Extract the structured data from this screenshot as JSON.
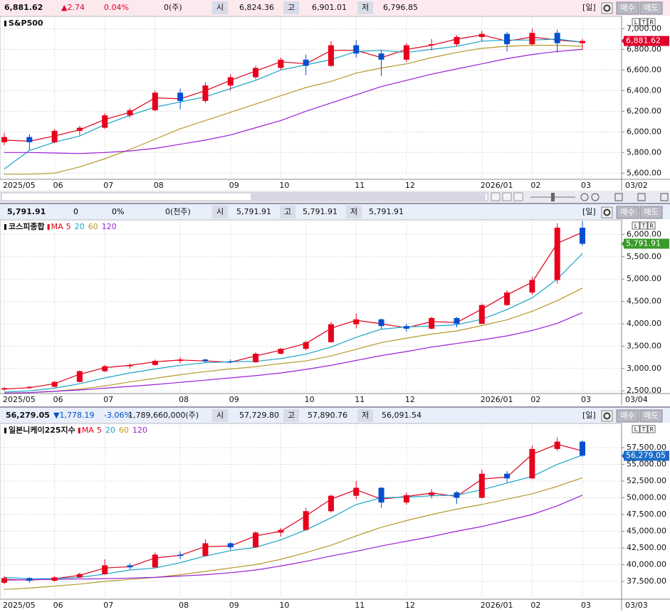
{
  "chart_data": [
    {
      "type": "candlestick",
      "title": "S&P500",
      "header": [
        "6,881.62",
        "▲2.74",
        "0.04%",
        "0(주)",
        "시",
        "6,824.36",
        "고",
        "6,901.01",
        "저",
        "6,796.85"
      ],
      "change_color": "#e0002a",
      "header_bg": "#fbe9ee",
      "buttons": [
        "[일]",
        "매수",
        "매도"
      ],
      "scale_buttons": [
        "L",
        "T",
        "R"
      ],
      "categories": [
        "2025/05",
        null,
        "06",
        null,
        "07",
        null,
        "08",
        null,
        null,
        "09",
        null,
        "10",
        null,
        null,
        "11",
        null,
        "12",
        null,
        null,
        "2026/01",
        null,
        "02",
        null,
        "03"
      ],
      "date": "03/02",
      "open": [
        5900,
        5950,
        5900,
        6010,
        6040,
        6160,
        6210,
        6380,
        6300,
        6450,
        6530,
        6620,
        6700,
        6640,
        6840,
        6760,
        6700,
        6840,
        6850,
        6920,
        6950,
        6850,
        6960,
        6860
      ],
      "high": [
        5990,
        5980,
        6030,
        6060,
        6180,
        6230,
        6400,
        6420,
        6480,
        6560,
        6640,
        6720,
        6750,
        6880,
        6890,
        6790,
        6860,
        6900,
        6940,
        6980,
        6970,
        7000,
        6990,
        6901
      ],
      "low": [
        5870,
        5820,
        5890,
        5970,
        6030,
        6140,
        6200,
        6220,
        6280,
        6400,
        6510,
        6600,
        6550,
        6630,
        6720,
        6540,
        6680,
        6790,
        6830,
        6880,
        6780,
        6840,
        6770,
        6797
      ],
      "close": [
        5950,
        5900,
        6010,
        6040,
        6160,
        6210,
        6380,
        6300,
        6450,
        6530,
        6620,
        6700,
        6640,
        6840,
        6760,
        6700,
        6840,
        6850,
        6920,
        6950,
        6850,
        6960,
        6860,
        6882
      ],
      "up_color": "#e8001c",
      "down_color": "#0050d0",
      "series": [
        {
          "color": "#e0001b",
          "values": [
            5920,
            5910,
            5960,
            6020,
            6120,
            6190,
            6330,
            6320,
            6400,
            6500,
            6590,
            6680,
            6660,
            6790,
            6790,
            6720,
            6800,
            6840,
            6900,
            6940,
            6880,
            6920,
            6890,
            6870
          ]
        },
        {
          "color": "#1aa3c9",
          "values": [
            5640,
            5820,
            5900,
            5960,
            6070,
            6160,
            6240,
            6290,
            6340,
            6420,
            6500,
            6600,
            6650,
            6700,
            6780,
            6790,
            6770,
            6800,
            6830,
            6880,
            6890,
            6890,
            6900,
            6870
          ]
        },
        {
          "color": "#b59a2a",
          "values": [
            5590,
            5590,
            5600,
            5660,
            5740,
            5830,
            5930,
            6030,
            6110,
            6190,
            6270,
            6350,
            6430,
            6490,
            6570,
            6620,
            6660,
            6720,
            6770,
            6810,
            6830,
            6840,
            6840,
            6830
          ]
        },
        {
          "color": "#9b1fd6",
          "values": [
            5800,
            5800,
            5795,
            5790,
            5800,
            5815,
            5840,
            5880,
            5920,
            5970,
            6040,
            6110,
            6200,
            6280,
            6360,
            6440,
            6500,
            6560,
            6610,
            6660,
            6710,
            6750,
            6780,
            6800
          ]
        }
      ],
      "ylim": [
        5540,
        7120
      ],
      "yticks": [
        {
          "value": 5600,
          "label": "5,600.00"
        },
        {
          "value": 5800,
          "label": "5,800.00"
        },
        {
          "value": 6000,
          "label": "6,000.00"
        },
        {
          "value": 6200,
          "label": "6,200.00"
        },
        {
          "value": 6400,
          "label": "6,400.00"
        },
        {
          "value": 6600,
          "label": "6,600.00"
        },
        {
          "value": 6800,
          "label": "6,800.00"
        },
        {
          "value": 7000,
          "label": "7,000.00"
        }
      ],
      "last_price": {
        "value": 6881.62,
        "label": "6,881.62"
      },
      "last_price_color": "#e0002a",
      "grid": true
    },
    {
      "type": "candlestick",
      "title": "코스피종합",
      "ma_label": "MA",
      "header": [
        "5,791.91",
        "0",
        "0%",
        "0(천주)",
        "시",
        "5,791.91",
        "고",
        "5,791.91",
        "저",
        "5,791.91"
      ],
      "change_color": "#000000",
      "header_bg": "#e8eefa",
      "buttons": [
        "[일]",
        "매수",
        "매도"
      ],
      "scale_buttons": [
        "L",
        "T",
        "R"
      ],
      "categories": [
        "2025/05",
        null,
        "06",
        null,
        "07",
        null,
        null,
        "08",
        null,
        "09",
        null,
        null,
        "10",
        null,
        "11",
        null,
        "12",
        null,
        null,
        "2026/01",
        null,
        "02",
        null,
        "03"
      ],
      "date": "03/04",
      "open": [
        2530,
        2560,
        2590,
        2700,
        2940,
        3050,
        3080,
        3170,
        3200,
        3160,
        3140,
        3330,
        3440,
        3590,
        3990,
        4100,
        3950,
        3890,
        4130,
        4000,
        4420,
        4700,
        4980,
        6150
      ],
      "high": [
        2580,
        2600,
        2720,
        2960,
        3080,
        3110,
        3200,
        3250,
        3220,
        3200,
        3360,
        3460,
        3620,
        4040,
        4230,
        4120,
        4000,
        4160,
        4150,
        4450,
        4750,
        5050,
        6250,
        6300
      ],
      "low": [
        2510,
        2550,
        2580,
        2690,
        2920,
        3000,
        3060,
        3120,
        3130,
        3120,
        3130,
        3320,
        3410,
        3580,
        3900,
        3880,
        3820,
        3880,
        3920,
        3990,
        4400,
        4650,
        4900,
        5750
      ],
      "close": [
        2560,
        2590,
        2700,
        2940,
        3050,
        3080,
        3170,
        3200,
        3160,
        3140,
        3330,
        3440,
        3590,
        3990,
        4100,
        3950,
        3890,
        4130,
        4000,
        4420,
        4700,
        4980,
        6150,
        5790
      ],
      "up_color": "#e8001c",
      "down_color": "#0050d0",
      "series": [
        {
          "name": "5",
          "color": "#e0001b",
          "values": [
            2540,
            2570,
            2660,
            2870,
            3020,
            3070,
            3150,
            3190,
            3170,
            3140,
            3280,
            3410,
            3560,
            3900,
            4080,
            4000,
            3910,
            4050,
            4030,
            4330,
            4650,
            4930,
            5800,
            6050
          ]
        },
        {
          "name": "20",
          "color": "#1aa3c9",
          "values": [
            2470,
            2500,
            2560,
            2660,
            2790,
            2900,
            2990,
            3070,
            3130,
            3150,
            3160,
            3220,
            3320,
            3480,
            3700,
            3880,
            3930,
            3950,
            3980,
            4100,
            4320,
            4580,
            5000,
            5570
          ]
        },
        {
          "name": "60",
          "color": "#b59a2a",
          "values": [
            2450,
            2460,
            2490,
            2540,
            2610,
            2700,
            2780,
            2860,
            2930,
            2990,
            3040,
            3110,
            3170,
            3280,
            3430,
            3580,
            3680,
            3770,
            3840,
            3960,
            4090,
            4280,
            4520,
            4800
          ]
        },
        {
          "name": "120",
          "color": "#9b1fd6",
          "values": [
            2440,
            2460,
            2490,
            2520,
            2560,
            2600,
            2640,
            2690,
            2740,
            2790,
            2840,
            2900,
            2980,
            3070,
            3180,
            3290,
            3380,
            3480,
            3560,
            3640,
            3730,
            3850,
            4010,
            4250
          ]
        }
      ],
      "ylim": [
        2440,
        6325
      ],
      "yticks": [
        {
          "value": 2500,
          "label": "2,500.00"
        },
        {
          "value": 3000,
          "label": "3,000.00"
        },
        {
          "value": 3500,
          "label": "3,500.00"
        },
        {
          "value": 4000,
          "label": "4,000.00"
        },
        {
          "value": 4500,
          "label": "4,500.00"
        },
        {
          "value": 5000,
          "label": "5,000.00"
        },
        {
          "value": 5500,
          "label": "5,500.00"
        },
        {
          "value": 6000,
          "label": "6,000.00"
        }
      ],
      "last_price": {
        "value": 5791.91,
        "label": "5,791.91"
      },
      "last_price_color": "#3a9a2a",
      "grid": true
    },
    {
      "type": "candlestick",
      "title": "일본니케이225지수",
      "ma_label": "MA",
      "header": [
        "56,279.05",
        "▼1,778.19",
        "-3.06%",
        "1,789,660,000(주)",
        "시",
        "57,729.80",
        "고",
        "57,890.76",
        "저",
        "56,091.54"
      ],
      "change_color": "#0050c8",
      "header_bg": "#e8eefa",
      "buttons": [
        "[일]",
        "매수",
        "매도"
      ],
      "scale_buttons": [
        "L",
        "T",
        "R"
      ],
      "categories": [
        "2025/05",
        null,
        "06",
        null,
        "07",
        null,
        null,
        "08",
        null,
        "09",
        null,
        "10",
        null,
        null,
        "11",
        null,
        "12",
        null,
        null,
        "2026/01",
        null,
        "02",
        null,
        "03"
      ],
      "date": "03/03",
      "open": [
        37300,
        38000,
        37600,
        38100,
        38600,
        39900,
        39600,
        41500,
        41300,
        43200,
        42600,
        44800,
        45200,
        48000,
        50300,
        51500,
        49300,
        50400,
        50800,
        50000,
        53600,
        52900,
        57300,
        58400
      ],
      "high": [
        38300,
        38100,
        38300,
        38800,
        40800,
        40200,
        41800,
        42000,
        43800,
        43400,
        45000,
        45500,
        48500,
        50500,
        52500,
        51600,
        50800,
        51300,
        51000,
        54200,
        54000,
        57800,
        59000,
        58600
      ],
      "low": [
        37100,
        37300,
        37500,
        38000,
        38500,
        39300,
        39500,
        40800,
        41200,
        42200,
        42500,
        44200,
        45100,
        47800,
        49800,
        48500,
        49000,
        49900,
        49100,
        49900,
        52300,
        52800,
        57000,
        56100
      ],
      "close": [
        38000,
        37600,
        38100,
        38600,
        39900,
        39600,
        41500,
        41300,
        43200,
        42600,
        44800,
        45200,
        48000,
        50300,
        51500,
        49300,
        50400,
        50800,
        50000,
        53600,
        52900,
        57300,
        58400,
        56300
      ],
      "up_color": "#e8001c",
      "down_color": "#0050d0",
      "series": [
        {
          "name": "5",
          "color": "#e0001b",
          "values": [
            37800,
            37700,
            37900,
            38400,
            39500,
            39700,
            41000,
            41400,
            42700,
            42800,
            44300,
            45000,
            47300,
            49800,
            51200,
            49800,
            50200,
            50700,
            50200,
            52800,
            53100,
            56500,
            58000,
            57000
          ]
        },
        {
          "name": "20",
          "color": "#1aa3c9",
          "values": [
            38100,
            37900,
            37900,
            38100,
            38600,
            39200,
            39500,
            40300,
            41300,
            42100,
            42600,
            43700,
            45200,
            47000,
            49000,
            50000,
            50100,
            50300,
            50400,
            51200,
            52200,
            53200,
            55000,
            56400
          ]
        },
        {
          "name": "60",
          "color": "#b59a2a",
          "values": [
            36300,
            36500,
            36800,
            37100,
            37500,
            37800,
            38100,
            38500,
            39000,
            39500,
            40000,
            40800,
            41800,
            42900,
            44300,
            45600,
            46600,
            47500,
            48300,
            49000,
            49800,
            50600,
            51700,
            53000
          ]
        },
        {
          "name": "120",
          "color": "#9b1fd6",
          "values": [
            37700,
            37750,
            37800,
            37850,
            37900,
            38000,
            38100,
            38300,
            38500,
            38800,
            39200,
            39800,
            40500,
            41300,
            42000,
            42800,
            43500,
            44200,
            45000,
            45700,
            46600,
            47500,
            48800,
            50400
          ]
        }
      ],
      "ylim": [
        34840,
        61120
      ],
      "yticks": [
        {
          "value": 37500,
          "label": "37,500.00"
        },
        {
          "value": 40000,
          "label": "40,000.00"
        },
        {
          "value": 42500,
          "label": "42,500.00"
        },
        {
          "value": 45000,
          "label": "45,000.00"
        },
        {
          "value": 47500,
          "label": "47,500.00"
        },
        {
          "value": 50000,
          "label": "50,000.00"
        },
        {
          "value": 52500,
          "label": "52,500.00"
        },
        {
          "value": 55000,
          "label": "55,000.00"
        },
        {
          "value": 57500,
          "label": "57,500.00"
        }
      ],
      "last_price": {
        "value": 56279.05,
        "label": "56,279.05"
      },
      "last_price_color": "#1a6cc8",
      "grid": true
    }
  ]
}
